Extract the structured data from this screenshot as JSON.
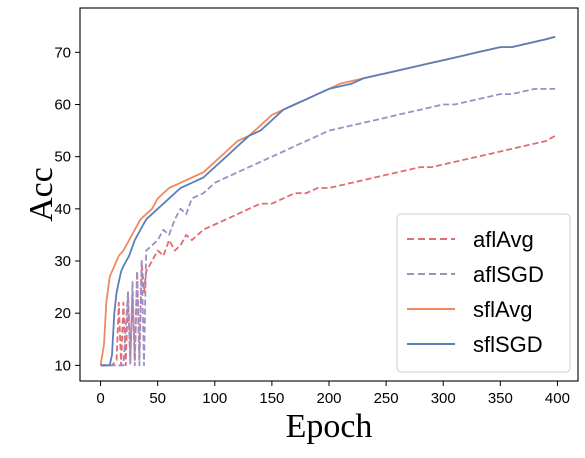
{
  "chart_data": {
    "type": "line",
    "title": "",
    "xlabel": "Epoch",
    "ylabel": "Acc",
    "xlim": [
      -18,
      418
    ],
    "ylim": [
      7,
      78.5
    ],
    "xticks": [
      0,
      50,
      100,
      150,
      200,
      250,
      300,
      350,
      400
    ],
    "yticks": [
      10,
      20,
      30,
      40,
      50,
      60,
      70
    ],
    "grid": false,
    "legend_position": "lower-right",
    "series": [
      {
        "name": "aflAvg",
        "color": "#e36b72",
        "style": "dashed",
        "x": [
          0,
          10,
          14,
          16,
          18,
          20,
          22,
          24,
          26,
          28,
          30,
          32,
          34,
          36,
          38,
          40,
          45,
          50,
          55,
          60,
          65,
          70,
          75,
          80,
          90,
          100,
          110,
          120,
          130,
          140,
          150,
          160,
          170,
          180,
          190,
          200,
          210,
          220,
          230,
          240,
          250,
          260,
          270,
          280,
          290,
          300,
          310,
          320,
          330,
          340,
          350,
          360,
          370,
          380,
          390,
          398
        ],
        "y": [
          10,
          10,
          11,
          22,
          10,
          22,
          10,
          24,
          11,
          24,
          11,
          28,
          12,
          30,
          24,
          28,
          30,
          32,
          31,
          34,
          32,
          33,
          35,
          34,
          36,
          37,
          38,
          39,
          40,
          41,
          41,
          42,
          43,
          43,
          44,
          44,
          44.5,
          45,
          45.5,
          46,
          46.5,
          47,
          47.5,
          48,
          48,
          48.5,
          49,
          49.5,
          50,
          50.5,
          51,
          51.5,
          52,
          52.5,
          53,
          54
        ]
      },
      {
        "name": "aflSGD",
        "color": "#9d8ec4",
        "style": "dashed",
        "x": [
          0,
          20,
          24,
          26,
          28,
          30,
          32,
          34,
          36,
          38,
          40,
          45,
          50,
          55,
          60,
          65,
          70,
          75,
          80,
          90,
          100,
          110,
          120,
          130,
          140,
          150,
          160,
          170,
          180,
          190,
          200,
          210,
          220,
          230,
          240,
          250,
          260,
          270,
          280,
          290,
          300,
          310,
          320,
          330,
          340,
          350,
          360,
          370,
          380,
          390,
          398
        ],
        "y": [
          10,
          10,
          24,
          10,
          26,
          10,
          28,
          10,
          30,
          10,
          32,
          33,
          34,
          36,
          35,
          38,
          40,
          39,
          42,
          43,
          45,
          46,
          47,
          48,
          49,
          50,
          51,
          52,
          53,
          54,
          55,
          55.5,
          56,
          56.5,
          57,
          57.5,
          58,
          58.5,
          59,
          59.5,
          60,
          60,
          60.5,
          61,
          61.5,
          62,
          62,
          62.5,
          63,
          63,
          63
        ]
      },
      {
        "name": "sflAvg",
        "color": "#f08a5d",
        "style": "solid",
        "x": [
          0,
          3,
          5,
          8,
          12,
          16,
          20,
          25,
          30,
          35,
          40,
          45,
          50,
          60,
          70,
          80,
          90,
          100,
          110,
          120,
          130,
          140,
          150,
          160,
          170,
          180,
          190,
          200,
          210,
          220,
          230,
          240,
          250,
          260,
          270,
          280,
          290,
          300,
          310,
          320,
          330,
          340,
          350,
          360,
          370,
          380,
          390,
          398
        ],
        "y": [
          10,
          14,
          22,
          27,
          29,
          31,
          32,
          34,
          36,
          38,
          39,
          40,
          42,
          44,
          45,
          46,
          47,
          49,
          51,
          53,
          54,
          56,
          58,
          59,
          60,
          61,
          62,
          63,
          64,
          64.5,
          65,
          65.5,
          66,
          66.5,
          67,
          67.5,
          68,
          68.5,
          69,
          69.5,
          70,
          70.5,
          71,
          71,
          71.5,
          72,
          72.5,
          73
        ]
      },
      {
        "name": "sflSGD",
        "color": "#5b7fb8",
        "style": "solid",
        "x": [
          0,
          8,
          10,
          12,
          14,
          16,
          18,
          20,
          25,
          30,
          35,
          40,
          45,
          50,
          60,
          70,
          80,
          90,
          100,
          110,
          120,
          130,
          140,
          150,
          160,
          170,
          180,
          190,
          200,
          210,
          220,
          230,
          240,
          250,
          260,
          270,
          280,
          290,
          300,
          310,
          320,
          330,
          340,
          350,
          360,
          370,
          380,
          390,
          398
        ],
        "y": [
          10,
          10,
          12,
          20,
          24,
          26,
          28,
          29,
          31,
          34,
          36,
          38,
          39,
          40,
          42,
          44,
          45,
          46,
          48,
          50,
          52,
          54,
          55,
          57,
          59,
          60,
          61,
          62,
          63,
          63.5,
          64,
          65,
          65.5,
          66,
          66.5,
          67,
          67.5,
          68,
          68.5,
          69,
          69.5,
          70,
          70.5,
          71,
          71,
          71.5,
          72,
          72.5,
          73
        ]
      }
    ]
  }
}
